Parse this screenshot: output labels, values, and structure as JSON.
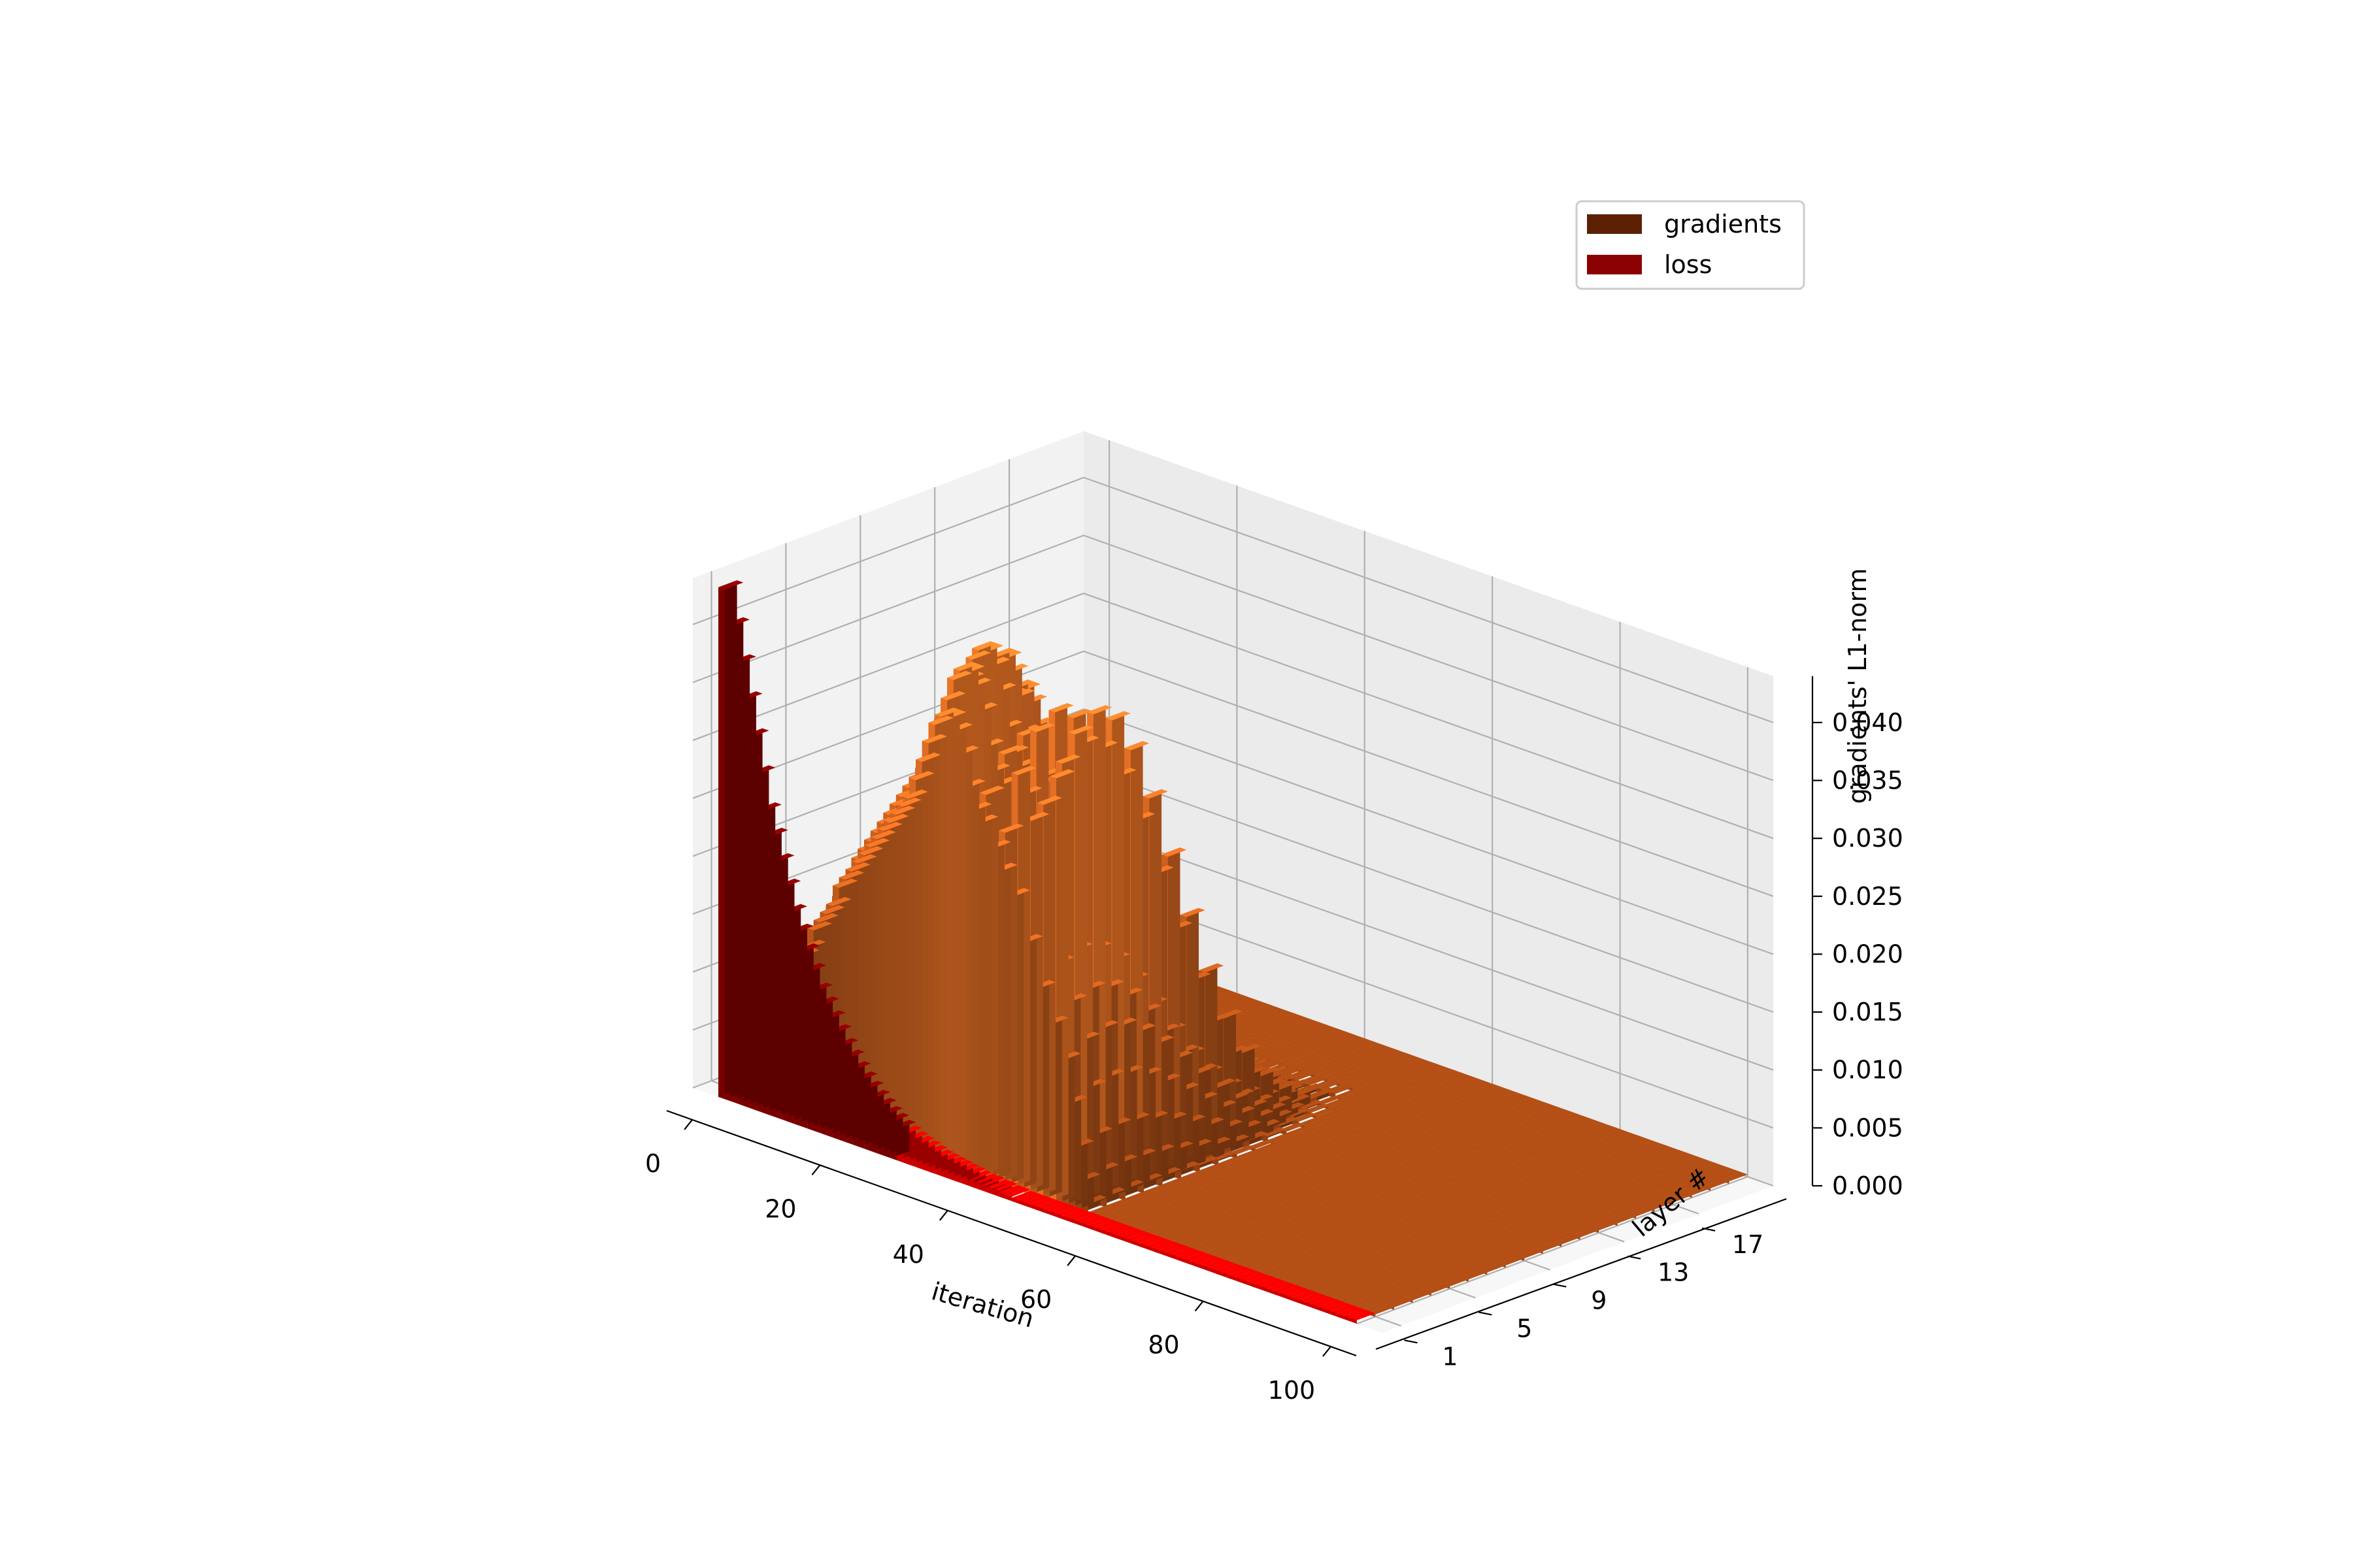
{
  "chart_data": {
    "type": "bar3d",
    "title": "",
    "xlabel": "iteration",
    "ylabel": "layer #",
    "zlabel": "gradients' L1-norm",
    "xlim": [
      -4,
      104
    ],
    "ylim": [
      0,
      21
    ],
    "zlim": [
      0,
      0.044
    ],
    "x_ticks": [
      0,
      20,
      40,
      60,
      80,
      100
    ],
    "x_tick_labels": [
      "0",
      "20",
      "40",
      "60",
      "80",
      "100"
    ],
    "y_ticks": [
      1,
      5,
      9,
      13,
      17
    ],
    "y_tick_labels": [
      "1",
      "5",
      "9",
      "13",
      "17"
    ],
    "z_ticks": [
      0,
      0.005,
      0.01,
      0.015,
      0.02,
      0.025,
      0.03,
      0.035,
      0.04
    ],
    "z_tick_labels": [
      "0.000",
      "0.005",
      "0.010",
      "0.015",
      "0.020",
      "0.025",
      "0.030",
      "0.035",
      "0.040"
    ],
    "grid": true,
    "legend_position": "top-right",
    "series": [
      {
        "name": "gradients",
        "color": "#5c2105",
        "iterations": 100,
        "layers": 20,
        "peak_profile_by_iteration": [
          0.0,
          0.001,
          0.002,
          0.004,
          0.006,
          0.008,
          0.01,
          0.012,
          0.013,
          0.015,
          0.016,
          0.018,
          0.019,
          0.02,
          0.021,
          0.023,
          0.024,
          0.025,
          0.026,
          0.027,
          0.028,
          0.029,
          0.03,
          0.031,
          0.032,
          0.033,
          0.034,
          0.036,
          0.038,
          0.04,
          0.042,
          0.043,
          0.043,
          0.042,
          0.04,
          0.037,
          0.035,
          0.034,
          0.037,
          0.032,
          0.03,
          0.034,
          0.028,
          0.04,
          0.024,
          0.036,
          0.02,
          0.038,
          0.017,
          0.041,
          0.014,
          0.01,
          0.006,
          0.003,
          0.001,
          0.0,
          0.0,
          0.0,
          0.0,
          0.0,
          0.0,
          0.0,
          0.0,
          0.0,
          0.0,
          0.0,
          0.0,
          0.0,
          0.0,
          0.0,
          0.0,
          0.0,
          0.0,
          0.0,
          0.0,
          0.0,
          0.0,
          0.0,
          0.0,
          0.0,
          0.0,
          0.0,
          0.0,
          0.0,
          0.0,
          0.0,
          0.0,
          0.0,
          0.0,
          0.0,
          0.0,
          0.0,
          0.0,
          0.0,
          0.0,
          0.0,
          0.0,
          0.0,
          0.0,
          0.0
        ],
        "peak_layer": 3,
        "layer_spread": 6
      },
      {
        "name": "loss",
        "color": "#8b0000",
        "layer": 0,
        "values": [
          0.044,
          0.041,
          0.038,
          0.035,
          0.032,
          0.029,
          0.026,
          0.024,
          0.022,
          0.02,
          0.018,
          0.0165,
          0.015,
          0.0135,
          0.012,
          0.011,
          0.01,
          0.009,
          0.008,
          0.0072,
          0.0064,
          0.0057,
          0.0051,
          0.0045,
          0.004,
          0.0035,
          0.0031,
          0.0027,
          0.0024,
          0.0021,
          0.0019,
          0.0017,
          0.0015,
          0.0013,
          0.0012,
          0.0011,
          0.001,
          0.0009,
          0.0008,
          0.0007,
          0.0006,
          0.0006,
          0.0005,
          0.0005,
          0.0004,
          0.0004,
          0.0003,
          0.0003,
          0.0003,
          0.0002,
          0.0002,
          0.0002,
          0.0002,
          0.0001,
          0.0001,
          0.0001,
          0.0001,
          0.0001,
          0.0001,
          0.0001,
          0.0001,
          0.0001,
          0.0001,
          0.0,
          0.0,
          0.0,
          0.0,
          0.0,
          0.0,
          0.0,
          0.0,
          0.0,
          0.0,
          0.0,
          0.0,
          0.0,
          0.0,
          0.0,
          0.0,
          0.0,
          0.0,
          0.0,
          0.0,
          0.0,
          0.0,
          0.0,
          0.0,
          0.0,
          0.0,
          0.0,
          0.0,
          0.0,
          0.0,
          0.0,
          0.0,
          0.0,
          0.0,
          0.0,
          0.0,
          0.0
        ]
      }
    ],
    "legend": [
      {
        "label": "gradients",
        "color": "#5c2105"
      },
      {
        "label": "loss",
        "color": "#8b0000"
      }
    ]
  }
}
